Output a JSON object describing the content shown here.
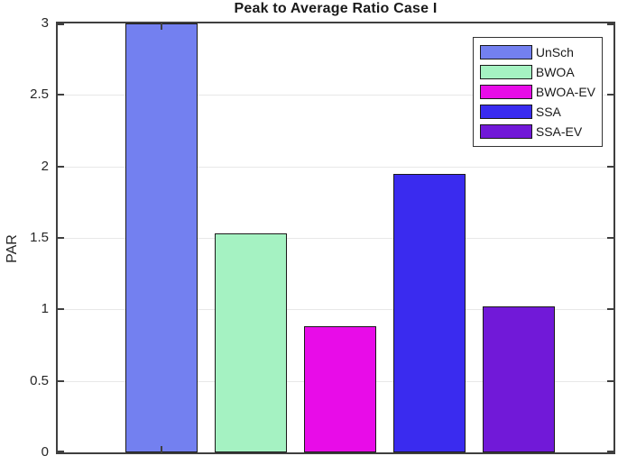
{
  "title": "Peak to Average Ratio Case I",
  "ylabel": "PAR",
  "chart_data": {
    "type": "bar",
    "title": "Peak to Average Ratio Case I",
    "xlabel": "",
    "ylabel": "PAR",
    "categories": [
      "UnSch",
      "BWOA",
      "BWOA-EV",
      "SSA",
      "SSA-EV"
    ],
    "values": [
      3.0,
      1.53,
      0.88,
      1.95,
      1.02
    ],
    "bar_colors": [
      "#7380F0",
      "#A5F2C2",
      "#E80CE8",
      "#3A2BEF",
      "#7119D8"
    ],
    "bar_edge_color": "#1a1a1a",
    "ylim": [
      0,
      3
    ],
    "yticks": [
      0,
      0.5,
      1,
      1.5,
      2,
      2.5,
      3
    ],
    "ytick_labels": [
      "0",
      "0.5",
      "1",
      "1.5",
      "2",
      "2.5",
      "3"
    ],
    "grid": "horizontal",
    "grid_color": "#e8e8e8",
    "axis_color": "#3f3f3f",
    "legend": {
      "position": "top-right",
      "entries": [
        {
          "label": "UnSch",
          "color": "#7380F0"
        },
        {
          "label": "BWOA",
          "color": "#A5F2C2"
        },
        {
          "label": "BWOA-EV",
          "color": "#E80CE8"
        },
        {
          "label": "SSA",
          "color": "#3A2BEF"
        },
        {
          "label": "SSA-EV",
          "color": "#7119D8"
        }
      ]
    }
  }
}
